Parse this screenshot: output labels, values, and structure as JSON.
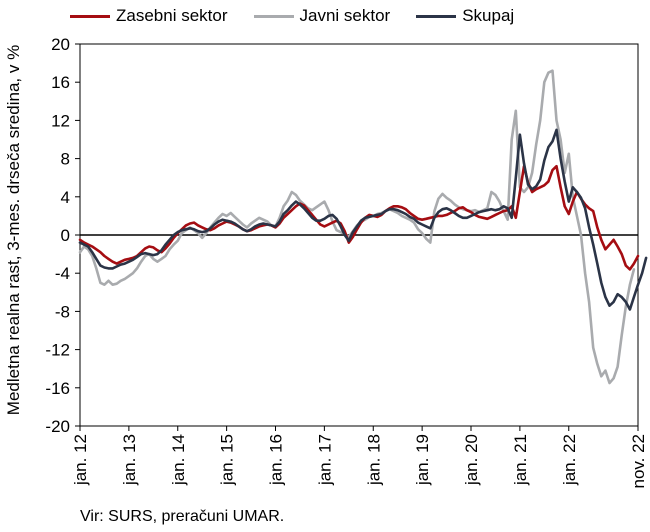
{
  "chart_data": {
    "type": "line",
    "ylabel": "Medletna realna rast, 3-mes. drseča sredina, v %",
    "ylim": [
      -20,
      20
    ],
    "yticks": [
      20,
      16,
      12,
      8,
      4,
      0,
      -4,
      -8,
      -12,
      -16,
      -20
    ],
    "x_start": "2012-01",
    "x_end": "2022-11",
    "xtick_labels": [
      "jan. 12",
      "jan. 13",
      "jan. 14",
      "jan. 15",
      "jan. 16",
      "jan. 17",
      "jan. 18",
      "jan. 19",
      "jan. 20",
      "jan. 21",
      "jan. 22",
      "nov. 22"
    ],
    "legend_position": "top",
    "series": [
      {
        "name": "Zasebni sektor",
        "color": "#a50d12",
        "values": [
          -0.5,
          -0.8,
          -1,
          -1.2,
          -1.5,
          -1.8,
          -2.2,
          -2.5,
          -2.8,
          -3,
          -2.8,
          -2.6,
          -2.5,
          -2.4,
          -2.2,
          -1.8,
          -1.4,
          -1.2,
          -1.3,
          -1.6,
          -1.8,
          -1.4,
          -0.9,
          -0.3,
          0.2,
          0.6,
          1,
          1.2,
          1.3,
          1,
          0.8,
          0.6,
          0.5,
          0.7,
          1,
          1.2,
          1.4,
          1.3,
          1.1,
          0.9,
          0.6,
          0.4,
          0.5,
          0.7,
          0.9,
          1,
          1.1,
          1,
          0.8,
          1.2,
          1.8,
          2.2,
          2.6,
          3,
          3.3,
          3.1,
          2.6,
          2.1,
          1.6,
          1.1,
          0.9,
          1.1,
          1.3,
          1.5,
          1.2,
          0.4,
          -0.8,
          -0.2,
          0.6,
          1.3,
          1.8,
          2.1,
          2,
          1.9,
          2.1,
          2.5,
          2.8,
          3,
          3,
          2.9,
          2.7,
          2.3,
          2,
          1.7,
          1.6,
          1.7,
          1.8,
          1.9,
          2,
          2,
          2.1,
          2.3,
          2.5,
          2.8,
          2.9,
          2.6,
          2.4,
          2.1,
          1.9,
          1.8,
          1.7,
          1.9,
          2.1,
          2.3,
          2.5,
          2.6,
          3,
          1.8,
          4.5,
          7.2,
          5.5,
          4.5,
          4.8,
          5,
          5.2,
          5.6,
          6.8,
          7.2,
          5,
          3,
          2.2,
          3.5,
          4.5,
          3.8,
          3.2,
          2.8,
          2.5,
          0.8,
          -0.5,
          -1.5,
          -1,
          -0.5,
          -1.2,
          -2,
          -3.2,
          -3.6,
          -3,
          -2.2
        ]
      },
      {
        "name": "Javni sektor",
        "color": "#a9abae",
        "values": [
          -1.8,
          -1.2,
          -1.5,
          -2.2,
          -3.5,
          -5,
          -5.2,
          -4.8,
          -5.2,
          -5.1,
          -4.8,
          -4.6,
          -4.3,
          -4,
          -3.5,
          -2.8,
          -2.2,
          -2,
          -2.5,
          -2.8,
          -2.5,
          -2.2,
          -1.5,
          -1,
          -0.6,
          0.2,
          0.5,
          0.8,
          0.5,
          0.2,
          -0.3,
          0.2,
          0.8,
          1.3,
          1.8,
          2.2,
          2,
          2.3,
          1.9,
          1.5,
          1.1,
          0.8,
          1.2,
          1.5,
          1.8,
          1.6,
          1.4,
          1,
          0.9,
          1.8,
          3,
          3.6,
          4.5,
          4.2,
          3.6,
          3.2,
          2.8,
          2.6,
          2.9,
          3.2,
          3.5,
          2.6,
          1.4,
          0.5,
          0.3,
          0.1,
          -0.2,
          0.4,
          1,
          1.4,
          1.6,
          1.9,
          2,
          2.2,
          2.3,
          2.5,
          2.7,
          2.5,
          2.3,
          2,
          1.8,
          1.6,
          1.3,
          0.6,
          0.2,
          -0.4,
          -0.8,
          2.5,
          3.8,
          4.3,
          3.9,
          3.6,
          3.2,
          2.9,
          2.7,
          2.6,
          2.5,
          2.6,
          2.4,
          2.6,
          2.8,
          4.5,
          4.2,
          3.5,
          2.5,
          1.6,
          10,
          13,
          5,
          4.5,
          5,
          6.5,
          9.5,
          12,
          16,
          17,
          17.2,
          12,
          10,
          6.5,
          8.5,
          4,
          2,
          0,
          -4,
          -7,
          -11.8,
          -13.5,
          -14.8,
          -14.2,
          -15.5,
          -15,
          -13.8,
          -10.5,
          -7.5,
          -5.2,
          -3.6
        ]
      },
      {
        "name": "Skupaj",
        "color": "#2b3447",
        "values": [
          -0.8,
          -1,
          -1.2,
          -1.8,
          -2.5,
          -3.2,
          -3.4,
          -3.5,
          -3.5,
          -3.3,
          -3.1,
          -3,
          -2.8,
          -2.6,
          -2.3,
          -2,
          -1.9,
          -2,
          -2.1,
          -2,
          -1.6,
          -1,
          -0.5,
          0,
          0.3,
          0.5,
          0.6,
          0.7,
          0.6,
          0.4,
          0.3,
          0.4,
          0.7,
          1.1,
          1.4,
          1.6,
          1.5,
          1.4,
          1.2,
          0.9,
          0.6,
          0.4,
          0.6,
          0.9,
          1.1,
          1.2,
          1.1,
          1,
          0.9,
          1.4,
          2.2,
          2.6,
          3.1,
          3.5,
          3.2,
          2.8,
          2.3,
          1.8,
          1.5,
          1.5,
          1.7,
          2,
          2.1,
          1.7,
          0.9,
          0,
          -0.6,
          0.3,
          0.9,
          1.5,
          1.8,
          1.9,
          2,
          2.1,
          2.2,
          2.5,
          2.7,
          2.7,
          2.6,
          2.4,
          2.2,
          1.9,
          1.7,
          1.3,
          1.1,
          0.9,
          0.7,
          1.8,
          2.4,
          2.7,
          2.8,
          2.6,
          2.3,
          2,
          1.8,
          1.8,
          2,
          2.2,
          2.4,
          2.5,
          2.6,
          2.7,
          2.6,
          2.7,
          3,
          2.8,
          1.8,
          6,
          10.5,
          7.5,
          5.3,
          4.8,
          5.1,
          5.8,
          7.8,
          9.2,
          9.8,
          11,
          8,
          5.6,
          3.5,
          5,
          4.5,
          3.9,
          2.8,
          0.8,
          -1,
          -3,
          -5,
          -6.5,
          -7.4,
          -7,
          -6.2,
          -6.5,
          -7,
          -7.8,
          -6.5,
          -5.2,
          -4,
          -2.4
        ]
      }
    ],
    "source_note": "Vir: SURS, preračuni UMAR."
  }
}
